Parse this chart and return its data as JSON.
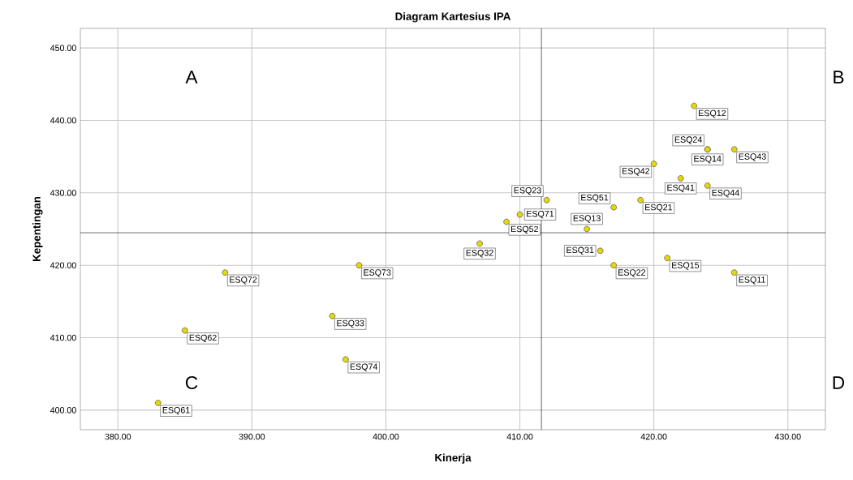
{
  "chart_data": {
    "type": "scatter",
    "title": "Diagram Kartesius IPA",
    "xlabel": "Kinerja",
    "ylabel": "Kepentingan",
    "x": [
      423,
      424,
      424,
      426,
      420,
      422,
      424,
      412,
      417,
      419,
      410,
      409,
      415,
      407,
      416,
      417,
      421,
      426,
      388,
      398,
      385,
      396,
      397,
      383
    ],
    "values": [
      442,
      436,
      436,
      436,
      434,
      432,
      431,
      429,
      428,
      429,
      427,
      426,
      425,
      423,
      422,
      420,
      421,
      419,
      419,
      420,
      411,
      413,
      407,
      401
    ],
    "value_labels": [
      "ESQ12",
      "ESQ24",
      "ESQ14",
      "ESQ43",
      "ESQ42",
      "ESQ41",
      "ESQ44",
      "ESQ23",
      "ESQ51",
      "ESQ21",
      "ESQ71",
      "ESQ52",
      "ESQ13",
      "ESQ32",
      "ESQ31",
      "ESQ22",
      "ESQ15",
      "ESQ11",
      "ESQ72",
      "ESQ73",
      "ESQ62",
      "ESQ33",
      "ESQ74",
      "ESQ61"
    ],
    "color": "#e5d70a",
    "marker": "circle",
    "grid": true,
    "xlim": [
      377.2,
      432.8
    ],
    "ylim": [
      397.3,
      452.7
    ],
    "xticks": [
      {
        "value": 380,
        "label": "380.00"
      },
      {
        "value": 390,
        "label": "390.00"
      },
      {
        "value": 400,
        "label": "400.00"
      },
      {
        "value": 410,
        "label": "410.00"
      },
      {
        "value": 420,
        "label": "420.00"
      },
      {
        "value": 430,
        "label": "430.00"
      }
    ],
    "yticks": [
      {
        "value": 400,
        "label": "400.00"
      },
      {
        "value": 410,
        "label": "410.00"
      },
      {
        "value": 420,
        "label": "420.00"
      },
      {
        "value": 430,
        "label": "430.00"
      },
      {
        "value": 440,
        "label": "440.00"
      },
      {
        "value": 450,
        "label": "450.00"
      }
    ],
    "ref_lines": [
      {
        "axis": "x",
        "value": 411.6,
        "color": "#000000"
      },
      {
        "axis": "y",
        "value": 424.5,
        "color": "#000000"
      }
    ],
    "annotations": [
      "A",
      "B",
      "C",
      "D"
    ]
  }
}
